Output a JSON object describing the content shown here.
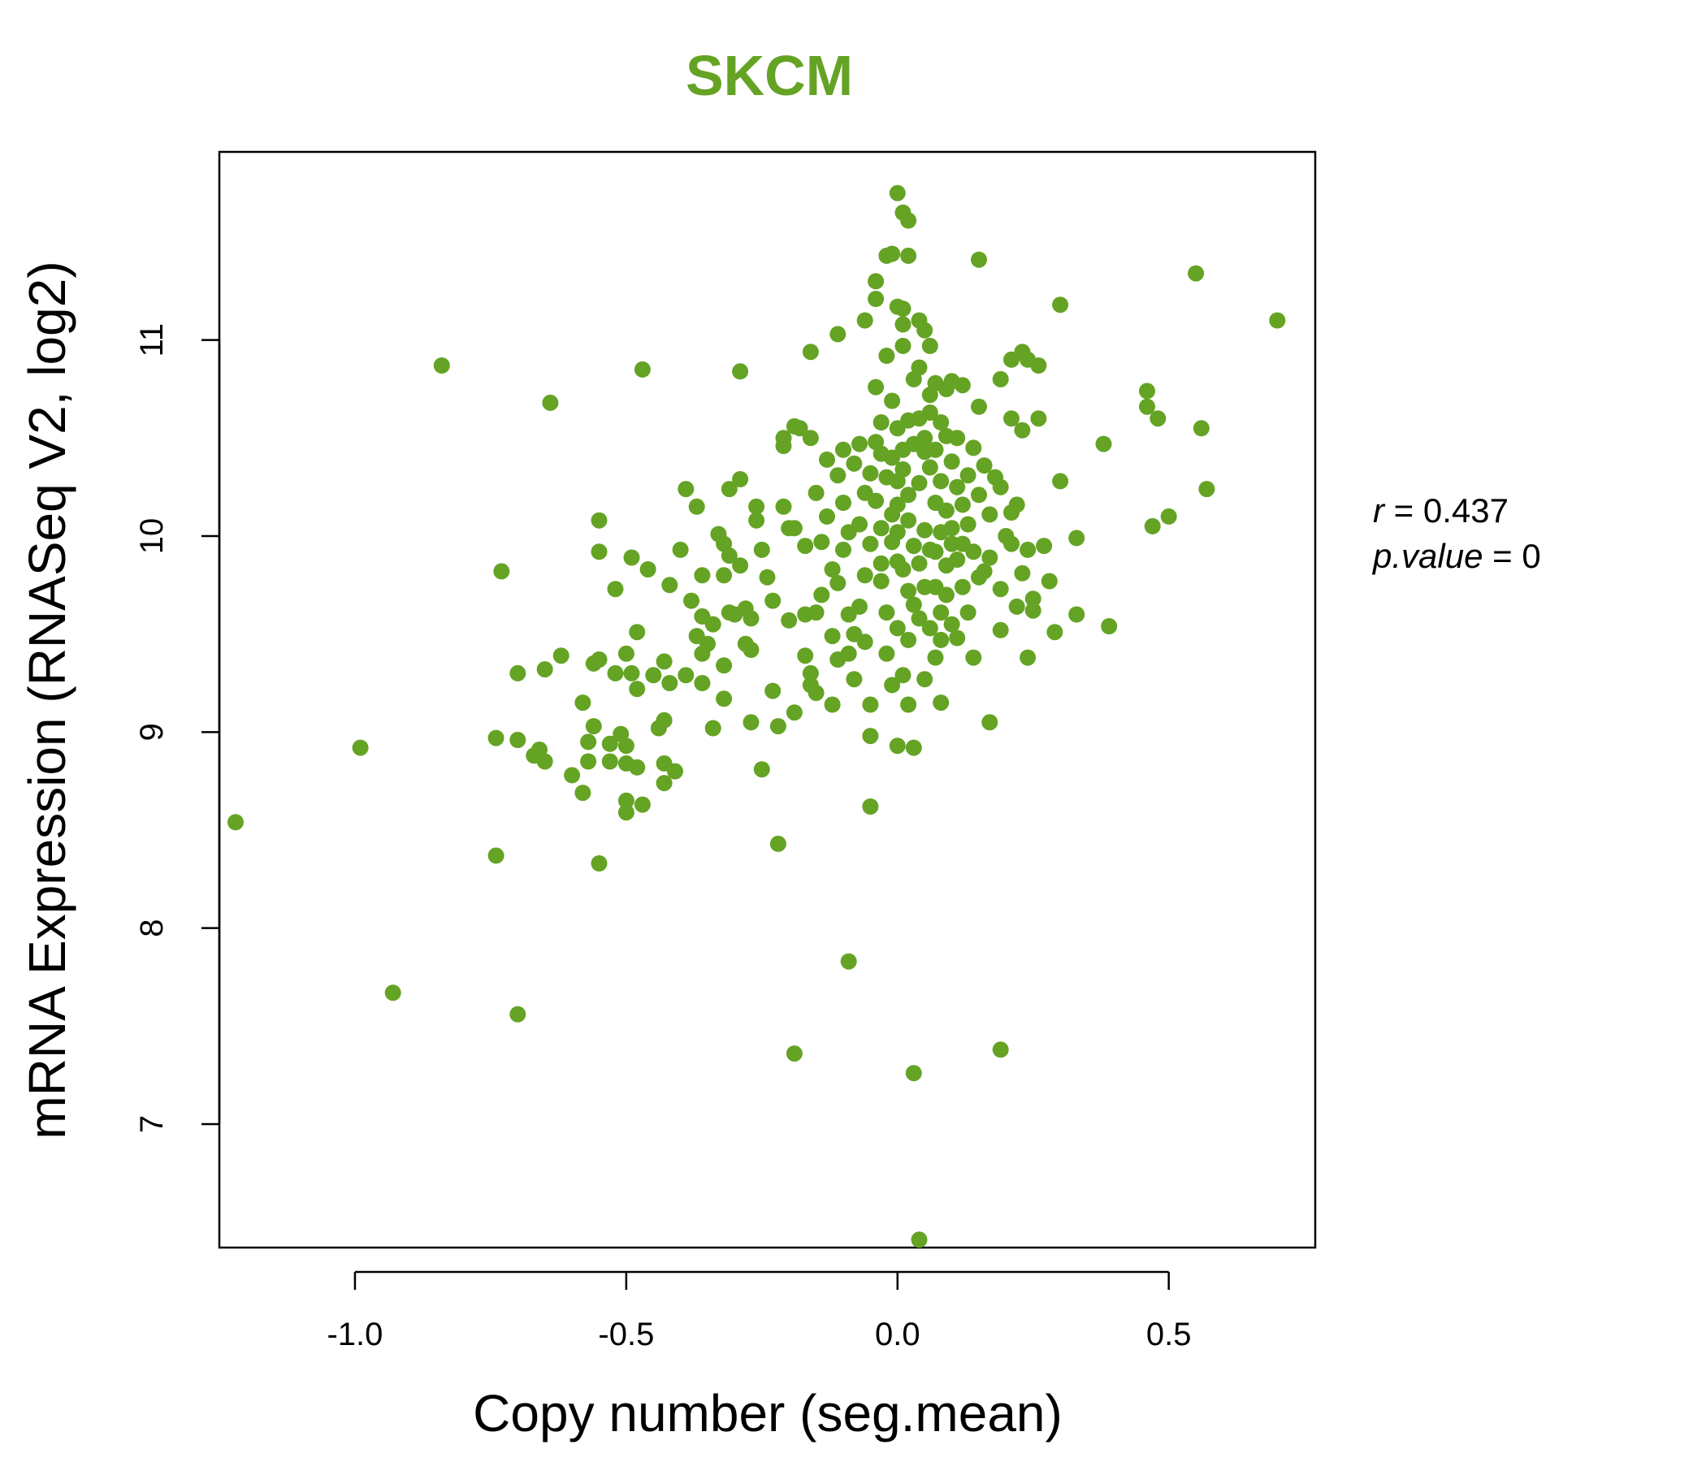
{
  "chart_data": {
    "type": "scatter",
    "title": "SKCM",
    "xlabel": "Copy number (seg.mean)",
    "ylabel": "mRNA Expression (RNASeq V2, log2)",
    "xlim": [
      -1.25,
      0.77
    ],
    "ylim": [
      6.37,
      11.96
    ],
    "xticks": [
      -1.0,
      -0.5,
      0.0,
      0.5
    ],
    "xtick_labels": [
      "-1.0",
      "-0.5",
      "0.0",
      "0.5"
    ],
    "yticks": [
      7,
      8,
      9,
      10,
      11
    ],
    "ytick_labels": [
      "7",
      "8",
      "9",
      "10",
      "11"
    ],
    "grid": false,
    "stats": {
      "r_label": "r",
      "r_value": "0.437",
      "p_label": "p.value",
      "p_value": "0"
    },
    "point_color": "#64a324",
    "title_color": "#64a324",
    "points": [
      [
        -1.22,
        8.54
      ],
      [
        -0.99,
        8.92
      ],
      [
        -0.93,
        7.67
      ],
      [
        -0.84,
        10.87
      ],
      [
        -0.74,
        8.97
      ],
      [
        -0.74,
        8.37
      ],
      [
        -0.73,
        9.82
      ],
      [
        -0.7,
        9.3
      ],
      [
        -0.7,
        7.56
      ],
      [
        -0.7,
        8.96
      ],
      [
        -0.67,
        8.88
      ],
      [
        -0.66,
        8.91
      ],
      [
        -0.65,
        8.85
      ],
      [
        -0.65,
        9.32
      ],
      [
        -0.64,
        10.68
      ],
      [
        -0.62,
        9.39
      ],
      [
        -0.6,
        8.78
      ],
      [
        -0.58,
        9.15
      ],
      [
        -0.58,
        8.69
      ],
      [
        -0.57,
        8.85
      ],
      [
        -0.57,
        8.95
      ],
      [
        -0.56,
        9.03
      ],
      [
        -0.56,
        9.35
      ],
      [
        -0.55,
        9.92
      ],
      [
        -0.55,
        10.08
      ],
      [
        -0.55,
        9.37
      ],
      [
        -0.55,
        8.33
      ],
      [
        -0.53,
        8.94
      ],
      [
        -0.53,
        8.85
      ],
      [
        -0.52,
        9.3
      ],
      [
        -0.52,
        9.73
      ],
      [
        -0.51,
        8.99
      ],
      [
        -0.5,
        9.4
      ],
      [
        -0.5,
        8.84
      ],
      [
        -0.5,
        8.65
      ],
      [
        -0.5,
        8.93
      ],
      [
        -0.5,
        8.59
      ],
      [
        -0.49,
        9.89
      ],
      [
        -0.49,
        9.3
      ],
      [
        -0.48,
        9.22
      ],
      [
        -0.48,
        9.51
      ],
      [
        -0.48,
        8.82
      ],
      [
        -0.47,
        8.63
      ],
      [
        -0.47,
        10.85
      ],
      [
        -0.46,
        9.83
      ],
      [
        -0.45,
        9.29
      ],
      [
        -0.44,
        9.02
      ],
      [
        -0.43,
        9.06
      ],
      [
        -0.43,
        8.74
      ],
      [
        -0.43,
        8.84
      ],
      [
        -0.43,
        9.36
      ],
      [
        -0.42,
        9.25
      ],
      [
        -0.42,
        9.75
      ],
      [
        -0.41,
        8.8
      ],
      [
        -0.4,
        9.93
      ],
      [
        -0.39,
        10.24
      ],
      [
        -0.39,
        9.29
      ],
      [
        -0.38,
        9.67
      ],
      [
        -0.37,
        10.15
      ],
      [
        -0.37,
        9.49
      ],
      [
        -0.36,
        9.8
      ],
      [
        -0.36,
        9.59
      ],
      [
        -0.36,
        9.4
      ],
      [
        -0.36,
        9.25
      ],
      [
        -0.35,
        9.45
      ],
      [
        -0.34,
        9.55
      ],
      [
        -0.34,
        9.02
      ],
      [
        -0.33,
        10.01
      ],
      [
        -0.32,
        9.96
      ],
      [
        -0.32,
        9.8
      ],
      [
        -0.32,
        9.34
      ],
      [
        -0.32,
        9.17
      ],
      [
        -0.31,
        10.24
      ],
      [
        -0.31,
        9.9
      ],
      [
        -0.31,
        9.61
      ],
      [
        -0.3,
        9.6
      ],
      [
        -0.29,
        9.85
      ],
      [
        -0.29,
        10.84
      ],
      [
        -0.29,
        10.29
      ],
      [
        -0.28,
        9.63
      ],
      [
        -0.28,
        9.45
      ],
      [
        -0.27,
        9.58
      ],
      [
        -0.27,
        9.42
      ],
      [
        -0.27,
        9.05
      ],
      [
        -0.26,
        10.15
      ],
      [
        -0.26,
        10.08
      ],
      [
        -0.25,
        9.93
      ],
      [
        -0.25,
        8.81
      ],
      [
        -0.24,
        9.79
      ],
      [
        -0.23,
        9.21
      ],
      [
        -0.23,
        9.67
      ],
      [
        -0.22,
        9.03
      ],
      [
        -0.22,
        8.43
      ],
      [
        -0.21,
        10.15
      ],
      [
        -0.21,
        10.46
      ],
      [
        -0.21,
        10.5
      ],
      [
        -0.2,
        10.04
      ],
      [
        -0.2,
        9.57
      ],
      [
        -0.19,
        10.04
      ],
      [
        -0.19,
        10.56
      ],
      [
        -0.19,
        9.1
      ],
      [
        -0.19,
        7.36
      ],
      [
        -0.18,
        10.55
      ],
      [
        -0.17,
        9.39
      ],
      [
        -0.17,
        9.6
      ],
      [
        -0.17,
        9.95
      ],
      [
        -0.16,
        10.94
      ],
      [
        -0.16,
        9.3
      ],
      [
        -0.16,
        9.24
      ],
      [
        -0.16,
        10.5
      ],
      [
        -0.15,
        10.22
      ],
      [
        -0.15,
        9.2
      ],
      [
        -0.15,
        9.61
      ],
      [
        -0.14,
        9.97
      ],
      [
        -0.14,
        9.7
      ],
      [
        -0.13,
        10.1
      ],
      [
        -0.13,
        10.39
      ],
      [
        -0.12,
        9.83
      ],
      [
        -0.12,
        9.49
      ],
      [
        -0.12,
        9.14
      ],
      [
        -0.11,
        10.31
      ],
      [
        -0.11,
        9.76
      ],
      [
        -0.11,
        9.37
      ],
      [
        -0.11,
        11.03
      ],
      [
        -0.1,
        10.17
      ],
      [
        -0.1,
        10.44
      ],
      [
        -0.1,
        9.93
      ],
      [
        -0.09,
        9.6
      ],
      [
        -0.09,
        9.4
      ],
      [
        -0.09,
        7.83
      ],
      [
        -0.09,
        10.02
      ],
      [
        -0.08,
        9.5
      ],
      [
        -0.08,
        10.37
      ],
      [
        -0.08,
        9.27
      ],
      [
        -0.07,
        10.47
      ],
      [
        -0.07,
        9.64
      ],
      [
        -0.07,
        10.06
      ],
      [
        -0.06,
        10.22
      ],
      [
        -0.06,
        9.8
      ],
      [
        -0.06,
        9.46
      ],
      [
        -0.06,
        11.1
      ],
      [
        -0.05,
        10.32
      ],
      [
        -0.05,
        9.96
      ],
      [
        -0.05,
        9.14
      ],
      [
        -0.05,
        8.98
      ],
      [
        -0.05,
        8.62
      ],
      [
        -0.04,
        10.48
      ],
      [
        -0.04,
        10.76
      ],
      [
        -0.04,
        10.18
      ],
      [
        -0.04,
        11.21
      ],
      [
        -0.04,
        11.3
      ],
      [
        -0.03,
        10.04
      ],
      [
        -0.03,
        10.42
      ],
      [
        -0.03,
        9.77
      ],
      [
        -0.03,
        10.58
      ],
      [
        -0.03,
        9.86
      ],
      [
        -0.02,
        10.3
      ],
      [
        -0.02,
        9.61
      ],
      [
        -0.02,
        10.92
      ],
      [
        -0.02,
        11.43
      ],
      [
        -0.02,
        9.4
      ],
      [
        -0.01,
        10.11
      ],
      [
        -0.01,
        10.4
      ],
      [
        -0.01,
        9.97
      ],
      [
        -0.01,
        9.24
      ],
      [
        -0.01,
        11.44
      ],
      [
        -0.01,
        10.69
      ],
      [
        0.0,
        10.28
      ],
      [
        0.0,
        10.16
      ],
      [
        0.0,
        10.55
      ],
      [
        0.0,
        10.02
      ],
      [
        0.0,
        9.87
      ],
      [
        0.0,
        9.53
      ],
      [
        0.0,
        11.17
      ],
      [
        0.0,
        8.93
      ],
      [
        0.0,
        11.75
      ],
      [
        0.01,
        10.34
      ],
      [
        0.01,
        9.83
      ],
      [
        0.01,
        11.65
      ],
      [
        0.01,
        11.08
      ],
      [
        0.01,
        10.97
      ],
      [
        0.01,
        10.44
      ],
      [
        0.01,
        9.29
      ],
      [
        0.01,
        11.16
      ],
      [
        0.02,
        10.08
      ],
      [
        0.02,
        10.21
      ],
      [
        0.02,
        9.72
      ],
      [
        0.02,
        9.47
      ],
      [
        0.02,
        11.61
      ],
      [
        0.02,
        10.59
      ],
      [
        0.02,
        9.14
      ],
      [
        0.02,
        11.43
      ],
      [
        0.03,
        10.47
      ],
      [
        0.03,
        9.95
      ],
      [
        0.03,
        9.65
      ],
      [
        0.03,
        10.8
      ],
      [
        0.03,
        7.26
      ],
      [
        0.03,
        8.92
      ],
      [
        0.04,
        10.27
      ],
      [
        0.04,
        10.6
      ],
      [
        0.04,
        9.86
      ],
      [
        0.04,
        9.58
      ],
      [
        0.04,
        10.86
      ],
      [
        0.04,
        11.1
      ],
      [
        0.04,
        6.41
      ],
      [
        0.05,
        10.43
      ],
      [
        0.05,
        10.03
      ],
      [
        0.05,
        9.74
      ],
      [
        0.05,
        11.05
      ],
      [
        0.05,
        9.27
      ],
      [
        0.05,
        10.5
      ],
      [
        0.06,
        10.35
      ],
      [
        0.06,
        10.63
      ],
      [
        0.06,
        9.93
      ],
      [
        0.06,
        9.53
      ],
      [
        0.06,
        10.97
      ],
      [
        0.06,
        10.72
      ],
      [
        0.07,
        10.17
      ],
      [
        0.07,
        10.44
      ],
      [
        0.07,
        9.74
      ],
      [
        0.07,
        9.38
      ],
      [
        0.07,
        10.78
      ],
      [
        0.07,
        9.92
      ],
      [
        0.08,
        10.28
      ],
      [
        0.08,
        10.02
      ],
      [
        0.08,
        9.61
      ],
      [
        0.08,
        9.15
      ],
      [
        0.08,
        10.58
      ],
      [
        0.08,
        9.47
      ],
      [
        0.09,
        10.51
      ],
      [
        0.09,
        10.13
      ],
      [
        0.09,
        9.85
      ],
      [
        0.09,
        9.7
      ],
      [
        0.09,
        10.75
      ],
      [
        0.1,
        10.38
      ],
      [
        0.1,
        9.96
      ],
      [
        0.1,
        9.55
      ],
      [
        0.1,
        10.79
      ],
      [
        0.1,
        10.04
      ],
      [
        0.11,
        10.25
      ],
      [
        0.11,
        9.88
      ],
      [
        0.11,
        9.48
      ],
      [
        0.11,
        10.5
      ],
      [
        0.12,
        10.16
      ],
      [
        0.12,
        9.74
      ],
      [
        0.12,
        10.77
      ],
      [
        0.12,
        9.96
      ],
      [
        0.13,
        10.31
      ],
      [
        0.13,
        9.61
      ],
      [
        0.13,
        10.06
      ],
      [
        0.14,
        9.92
      ],
      [
        0.14,
        9.38
      ],
      [
        0.14,
        10.45
      ],
      [
        0.15,
        10.21
      ],
      [
        0.15,
        9.79
      ],
      [
        0.15,
        10.66
      ],
      [
        0.15,
        11.41
      ],
      [
        0.16,
        10.36
      ],
      [
        0.16,
        9.82
      ],
      [
        0.17,
        10.11
      ],
      [
        0.17,
        9.05
      ],
      [
        0.17,
        9.89
      ],
      [
        0.18,
        10.3
      ],
      [
        0.19,
        9.73
      ],
      [
        0.19,
        10.25
      ],
      [
        0.19,
        7.38
      ],
      [
        0.19,
        10.8
      ],
      [
        0.19,
        9.52
      ],
      [
        0.2,
        10.0
      ],
      [
        0.21,
        10.6
      ],
      [
        0.21,
        10.9
      ],
      [
        0.21,
        9.96
      ],
      [
        0.21,
        10.12
      ],
      [
        0.22,
        10.16
      ],
      [
        0.22,
        9.64
      ],
      [
        0.23,
        10.94
      ],
      [
        0.23,
        10.54
      ],
      [
        0.23,
        9.81
      ],
      [
        0.24,
        9.93
      ],
      [
        0.24,
        10.9
      ],
      [
        0.24,
        9.38
      ],
      [
        0.25,
        9.68
      ],
      [
        0.25,
        9.62
      ],
      [
        0.26,
        10.6
      ],
      [
        0.26,
        10.87
      ],
      [
        0.27,
        9.95
      ],
      [
        0.28,
        9.77
      ],
      [
        0.29,
        9.51
      ],
      [
        0.3,
        10.28
      ],
      [
        0.3,
        11.18
      ],
      [
        0.33,
        9.99
      ],
      [
        0.33,
        9.6
      ],
      [
        0.38,
        10.47
      ],
      [
        0.39,
        9.54
      ],
      [
        0.46,
        10.66
      ],
      [
        0.46,
        10.74
      ],
      [
        0.47,
        10.05
      ],
      [
        0.48,
        10.6
      ],
      [
        0.5,
        10.1
      ],
      [
        0.55,
        11.34
      ],
      [
        0.56,
        10.55
      ],
      [
        0.57,
        10.24
      ],
      [
        0.7,
        11.1
      ]
    ]
  }
}
